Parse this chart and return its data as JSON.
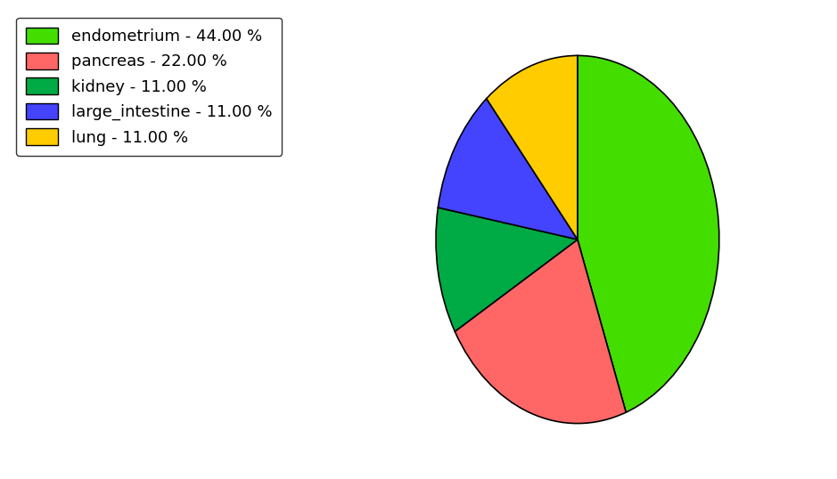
{
  "labels": [
    "endometrium",
    "pancreas",
    "kidney",
    "large_intestine",
    "lung"
  ],
  "values": [
    44.0,
    22.0,
    11.0,
    11.0,
    11.0
  ],
  "colors": [
    "#44dd00",
    "#ff6666",
    "#00aa44",
    "#4444ff",
    "#ffcc00"
  ],
  "legend_labels": [
    "endometrium - 44.00 %",
    "pancreas - 22.00 %",
    "kidney - 11.00 %",
    "large_intestine - 11.00 %",
    "lung - 11.00 %"
  ],
  "start_angle": 90,
  "background_color": "#ffffff",
  "legend_fontsize": 13,
  "figsize": [
    9.39,
    5.38
  ],
  "dpi": 100,
  "pie_aspect": 1.3
}
